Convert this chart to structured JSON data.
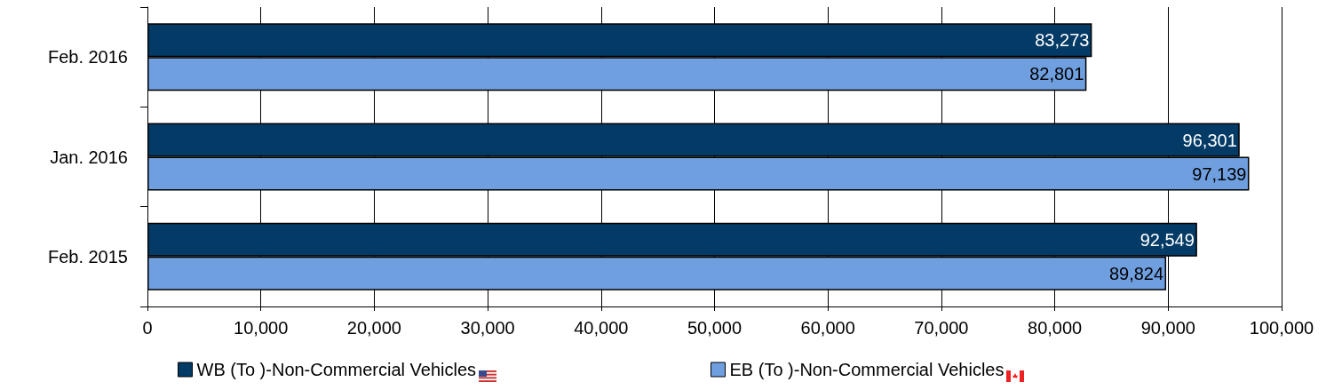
{
  "chart_data": {
    "type": "bar",
    "orientation": "horizontal",
    "categories": [
      "Feb. 2016",
      "Jan. 2016",
      "Feb. 2015"
    ],
    "series": [
      {
        "name": "WB (To )-Non-Commercial Vehicles",
        "color": "#043a66",
        "values": [
          83273,
          96301,
          92549
        ],
        "value_labels": [
          "83,273",
          "96,301",
          "92,549"
        ]
      },
      {
        "name": "EB (To )-Non-Commercial Vehicles",
        "color": "#6f9fdf",
        "values": [
          82801,
          97139,
          89824
        ],
        "value_labels": [
          "82,801",
          "97,139",
          "89,824"
        ]
      }
    ],
    "xlim": [
      0,
      100000
    ],
    "xticks": [
      0,
      {
        "value": 10000,
        "label": "10,000"
      },
      {
        "value": 20000,
        "label": "20,000"
      },
      {
        "value": 30000,
        "label": "30,000"
      },
      {
        "value": 40000,
        "label": "40,000"
      },
      {
        "value": 50000,
        "label": "50,000"
      },
      {
        "value": 60000,
        "label": "60,000"
      },
      {
        "value": 70000,
        "label": "70,000"
      },
      {
        "value": 80000,
        "label": "80,000"
      },
      {
        "value": 90000,
        "label": "90,000"
      },
      {
        "value": 100000,
        "label": "100,000"
      }
    ],
    "grid": "x",
    "legend": "bottom",
    "data_labels": true
  }
}
